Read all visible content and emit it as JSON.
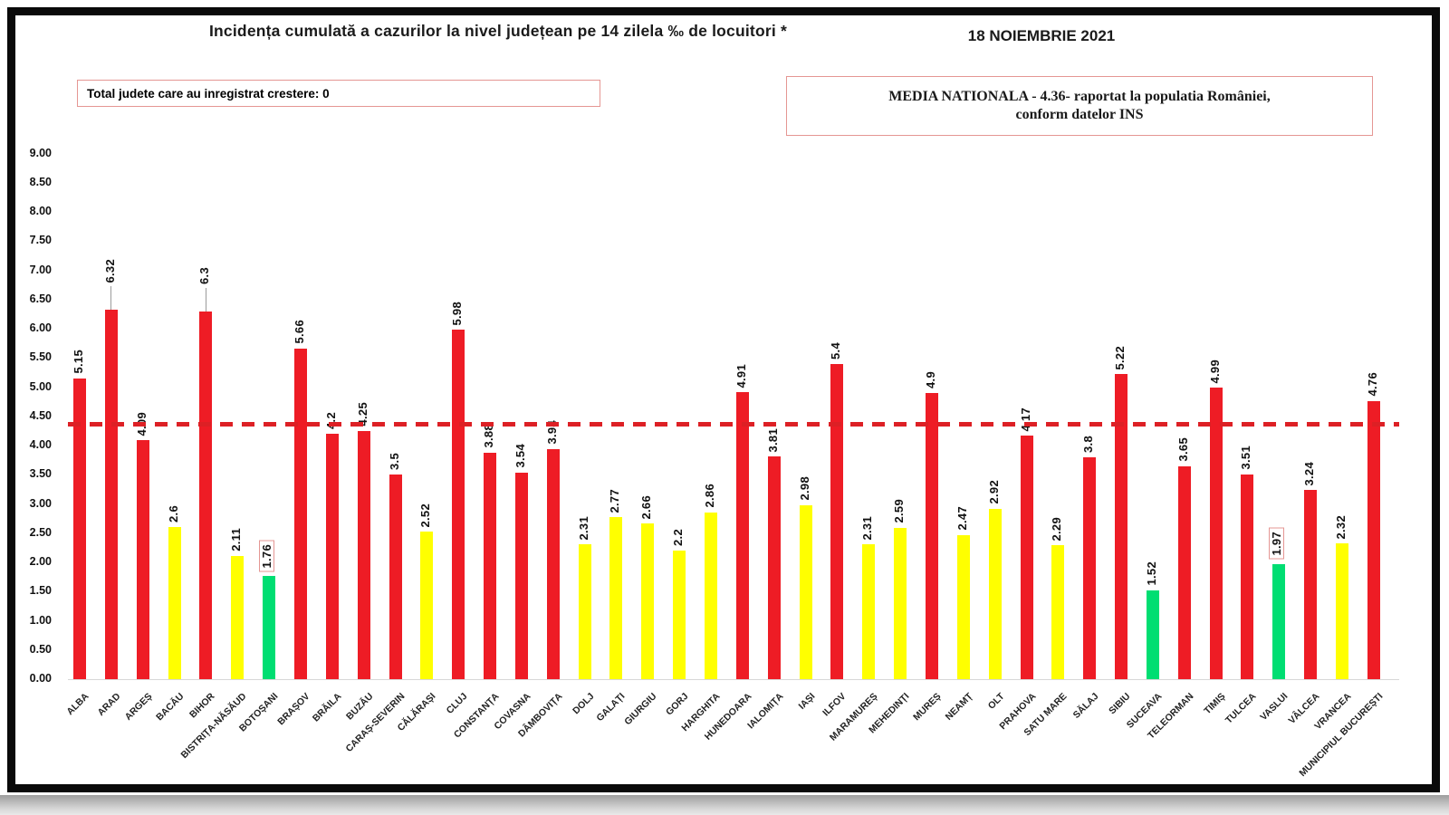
{
  "header": {
    "title": "Incidența cumulată a cazurilor la nivel județean pe 14 zilela ‰ de locuitori *",
    "date": "18 NOIEMBRIE 2021",
    "total_box_label": "Total judete care au inregistrat crestere: 0",
    "media_box_line1": "MEDIA NATIONALA - 4.36- raportat la populatia României,",
    "media_box_line2": "conform datelor INS"
  },
  "chart_data": {
    "type": "bar",
    "title": "Incidența cumulată a cazurilor la nivel județean pe 14 zilela ‰ de locuitori *",
    "categories": [
      "ALBA",
      "ARAD",
      "ARGEȘ",
      "BACĂU",
      "BIHOR",
      "BISTRIȚA-NĂSĂUD",
      "BOTOȘANI",
      "BRAȘOV",
      "BRĂILA",
      "BUZĂU",
      "CARAȘ-SEVERIN",
      "CĂLĂRAȘI",
      "CLUJ",
      "CONSTANȚA",
      "COVASNA",
      "DÂMBOVIȚA",
      "DOLJ",
      "GALAȚI",
      "GIURGIU",
      "GORJ",
      "HARGHITA",
      "HUNEDOARA",
      "IALOMIȚA",
      "IAȘI",
      "ILFOV",
      "MARAMUREȘ",
      "MEHEDINȚI",
      "MUREȘ",
      "NEAMȚ",
      "OLT",
      "PRAHOVA",
      "SATU MARE",
      "SĂLAJ",
      "SIBIU",
      "SUCEAVA",
      "TELEORMAN",
      "TIMIȘ",
      "TULCEA",
      "VASLUI",
      "VÂLCEA",
      "VRANCEA",
      "MUNICIPIUL BUCUREȘTI"
    ],
    "values": [
      5.15,
      6.32,
      4.09,
      2.6,
      6.3,
      2.11,
      1.76,
      5.66,
      4.2,
      4.25,
      3.5,
      2.52,
      5.98,
      3.88,
      3.54,
      3.94,
      2.31,
      2.77,
      2.66,
      2.2,
      2.86,
      4.91,
      3.81,
      2.98,
      5.4,
      2.31,
      2.59,
      4.9,
      2.47,
      2.92,
      4.17,
      2.29,
      3.8,
      5.22,
      1.52,
      3.65,
      4.99,
      3.51,
      1.97,
      3.24,
      2.32,
      4.76
    ],
    "value_labels": [
      "5.15",
      "6.32",
      "4.09",
      "2.6",
      "6.3",
      "2.11",
      "1.76",
      "5.66",
      "4.2",
      "4.25",
      "3.5",
      "2.52",
      "5.98",
      "3.88",
      "3.54",
      "3.94",
      "2.31",
      "2.77",
      "2.66",
      "2.2",
      "2.86",
      "4.91",
      "3.81",
      "2.98",
      "5.4",
      "2.31",
      "2.59",
      "4.9",
      "2.47",
      "2.92",
      "4.17",
      "2.29",
      "3.8",
      "5.22",
      "1.52",
      "3.65",
      "4.99",
      "3.51",
      "1.97",
      "3.24",
      "2.32",
      "4.76"
    ],
    "colors": [
      "red",
      "red",
      "red",
      "yellow",
      "red",
      "yellow",
      "green",
      "red",
      "red",
      "red",
      "red",
      "yellow",
      "red",
      "red",
      "red",
      "red",
      "yellow",
      "yellow",
      "yellow",
      "yellow",
      "yellow",
      "red",
      "red",
      "yellow",
      "red",
      "yellow",
      "yellow",
      "red",
      "yellow",
      "yellow",
      "red",
      "yellow",
      "red",
      "red",
      "green",
      "red",
      "red",
      "red",
      "green",
      "red",
      "yellow",
      "red"
    ],
    "boxed_labels": [
      false,
      false,
      false,
      false,
      false,
      false,
      true,
      false,
      false,
      false,
      false,
      false,
      false,
      false,
      false,
      false,
      false,
      false,
      false,
      false,
      false,
      false,
      false,
      false,
      false,
      false,
      false,
      false,
      false,
      false,
      false,
      false,
      false,
      false,
      false,
      false,
      false,
      false,
      true,
      false,
      false,
      false
    ],
    "palette": {
      "red": "#ee1c25",
      "yellow": "#ffff00",
      "green": "#00de72"
    },
    "reference_line_color": "#dd2025",
    "national_average": 4.36,
    "ylim": [
      0,
      9
    ],
    "ytick_step": 0.5,
    "xlabel": "",
    "ylabel": "",
    "grid": false,
    "legend": "none"
  }
}
